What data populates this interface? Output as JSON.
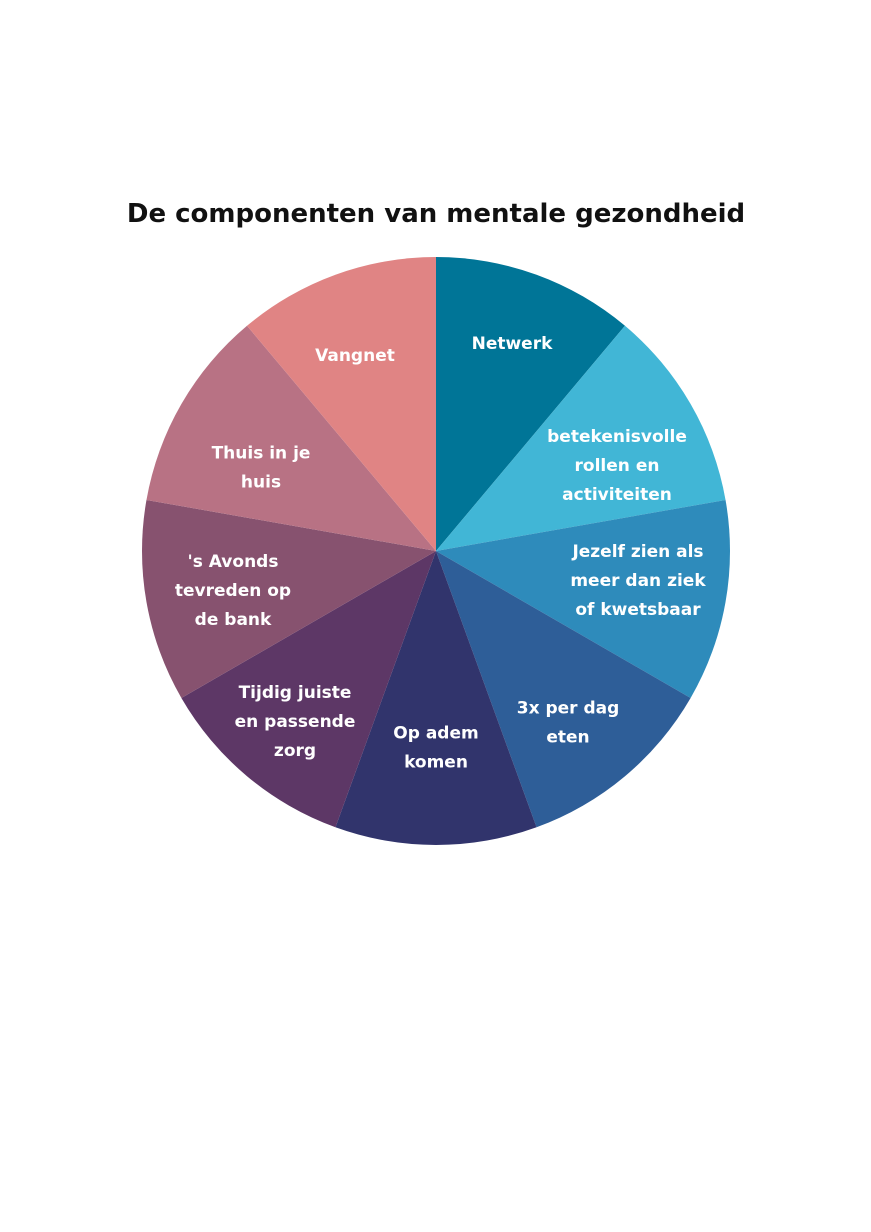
{
  "chart_data": {
    "type": "pie",
    "title": "De componenten van mentale gezondheid",
    "start": "top",
    "direction": "clockwise",
    "slices": [
      {
        "label": "Netwerk",
        "lines": [
          "Netwerk"
        ],
        "value": 1,
        "color": "#007597"
      },
      {
        "label": "betekenisvolle rollen en activiteiten",
        "lines": [
          "betekenisvolle",
          "rollen en",
          "activiteiten"
        ],
        "value": 1,
        "color": "#41b6d6"
      },
      {
        "label": "Jezelf zien als meer dan ziek of kwetsbaar",
        "lines": [
          "Jezelf zien als",
          "meer dan ziek",
          "of kwetsbaar"
        ],
        "value": 1,
        "color": "#2e8bbb"
      },
      {
        "label": "3x per dag eten",
        "lines": [
          "3x per dag",
          "eten"
        ],
        "value": 1,
        "color": "#2e5e98"
      },
      {
        "label": "Op adem komen",
        "lines": [
          "Op adem",
          "komen"
        ],
        "value": 1,
        "color": "#31346c"
      },
      {
        "label": "Tijdig juiste en passende zorg",
        "lines": [
          "Tijdig juiste",
          "en passende",
          "zorg"
        ],
        "value": 1,
        "color": "#5d3766"
      },
      {
        "label": "'s Avonds tevreden op de bank",
        "lines": [
          "'s Avonds",
          "tevreden op",
          "de bank"
        ],
        "value": 1,
        "color": "#87526f"
      },
      {
        "label": "Thuis in je huis",
        "lines": [
          "Thuis in je",
          "huis"
        ],
        "value": 1,
        "color": "#b87284"
      },
      {
        "label": "Vangnet",
        "lines": [
          "Vangnet"
        ],
        "value": 1,
        "color": "#e08484"
      }
    ]
  }
}
